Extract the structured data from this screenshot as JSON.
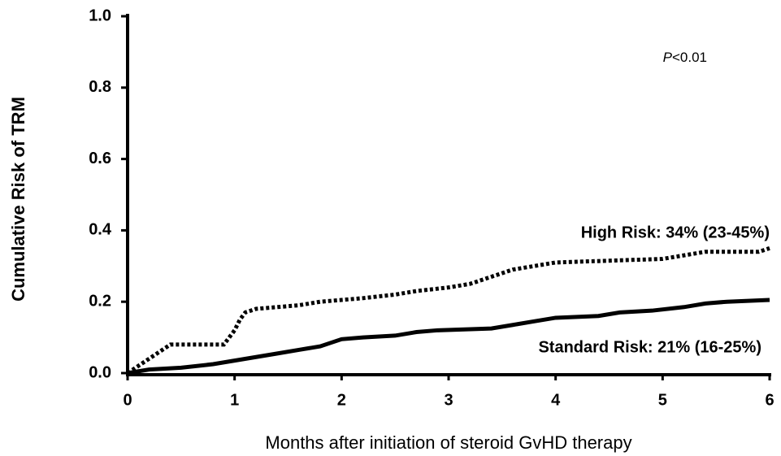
{
  "chart_data": {
    "type": "line",
    "x_label": "Months after initiation of steroid GvHD therapy",
    "y_label": "Cumulative Risk of TRM",
    "xlim": [
      0,
      6
    ],
    "xticks": [
      0,
      1,
      2,
      3,
      4,
      5,
      6
    ],
    "ylim": [
      0,
      1
    ],
    "yticks": [
      {
        "value": 0,
        "label": "0.0"
      },
      0.2,
      0.4,
      0.6,
      0.8,
      {
        "value": 1,
        "label": "1.0"
      }
    ],
    "p_value": {
      "symbol": "P",
      "text": "<0.01"
    },
    "series": [
      {
        "name": "High Risk: 34% (23-45%)",
        "color": "#000000",
        "dash": "dotted",
        "x": [
          0,
          0.05,
          0.1,
          0.2,
          0.3,
          0.4,
          0.9,
          0.95,
          1.0,
          1.05,
          1.1,
          1.2,
          1.6,
          1.8,
          2.2,
          2.5,
          2.7,
          3.0,
          3.2,
          3.4,
          3.6,
          3.8,
          4.0,
          5.0,
          5.2,
          5.4,
          5.9,
          6.0
        ],
        "values": [
          0,
          0.01,
          0.02,
          0.04,
          0.06,
          0.08,
          0.08,
          0.1,
          0.12,
          0.15,
          0.17,
          0.18,
          0.19,
          0.2,
          0.21,
          0.22,
          0.23,
          0.24,
          0.25,
          0.27,
          0.29,
          0.3,
          0.31,
          0.32,
          0.33,
          0.34,
          0.34,
          0.35
        ]
      },
      {
        "name": "Standard Risk: 21% (16-25%)",
        "color": "#000000",
        "dash": "solid",
        "x": [
          0,
          0.2,
          0.5,
          0.8,
          1.0,
          1.2,
          1.4,
          1.6,
          1.8,
          1.9,
          2.0,
          2.2,
          2.5,
          2.7,
          2.9,
          3.4,
          3.6,
          3.8,
          4.0,
          4.4,
          4.6,
          4.9,
          5.2,
          5.4,
          5.6,
          6.0
        ],
        "values": [
          0,
          0.01,
          0.015,
          0.025,
          0.035,
          0.045,
          0.055,
          0.065,
          0.075,
          0.085,
          0.095,
          0.1,
          0.105,
          0.115,
          0.12,
          0.125,
          0.135,
          0.145,
          0.155,
          0.16,
          0.17,
          0.175,
          0.185,
          0.195,
          0.2,
          0.205
        ]
      }
    ]
  }
}
